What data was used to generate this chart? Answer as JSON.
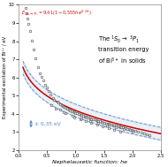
{
  "a": 9.41,
  "b": 0.555,
  "c": 0.24,
  "band": 0.35,
  "xlim": [
    0,
    2.5
  ],
  "ylim": [
    2,
    10
  ],
  "yticks": [
    2,
    3,
    4,
    5,
    6,
    7,
    8,
    9,
    10
  ],
  "xticks": [
    0.0,
    0.5,
    1.0,
    1.5,
    2.0,
    2.5
  ],
  "xlabel": "Nephelauxetic function: he",
  "ylabel": "Experimental excitation of Bi³⁺ / eV",
  "curve_color": "#cc0000",
  "band_color": "#5588cc",
  "dot_facecolor": "white",
  "dot_edgecolor": "#444444",
  "background_color": "#ffffff",
  "data_points": [
    [
      0.12,
      9.85
    ],
    [
      0.14,
      9.55
    ],
    [
      0.16,
      9.25
    ],
    [
      0.18,
      8.95
    ],
    [
      0.2,
      8.55
    ],
    [
      0.23,
      8.05
    ],
    [
      0.26,
      7.55
    ],
    [
      0.3,
      7.05
    ],
    [
      0.35,
      6.55
    ],
    [
      0.38,
      6.25
    ],
    [
      0.4,
      6.05
    ],
    [
      0.43,
      5.85
    ],
    [
      0.46,
      5.62
    ],
    [
      0.5,
      5.45
    ],
    [
      0.53,
      5.28
    ],
    [
      0.56,
      5.08
    ],
    [
      0.6,
      4.88
    ],
    [
      0.63,
      4.78
    ],
    [
      0.68,
      4.68
    ],
    [
      0.7,
      4.62
    ],
    [
      0.73,
      4.55
    ],
    [
      0.76,
      4.48
    ],
    [
      0.78,
      4.42
    ],
    [
      0.8,
      4.38
    ],
    [
      0.83,
      4.32
    ],
    [
      0.86,
      4.28
    ],
    [
      0.88,
      4.22
    ],
    [
      0.9,
      4.2
    ],
    [
      0.93,
      4.16
    ],
    [
      0.96,
      4.12
    ],
    [
      0.98,
      4.08
    ],
    [
      1.0,
      4.05
    ],
    [
      1.03,
      4.02
    ],
    [
      1.06,
      3.98
    ],
    [
      1.08,
      3.95
    ],
    [
      1.1,
      3.92
    ],
    [
      1.13,
      3.88
    ],
    [
      1.16,
      3.86
    ],
    [
      1.18,
      3.83
    ],
    [
      1.2,
      3.8
    ],
    [
      1.23,
      3.78
    ],
    [
      1.26,
      3.75
    ],
    [
      1.28,
      3.72
    ],
    [
      1.3,
      3.7
    ],
    [
      1.33,
      3.68
    ],
    [
      1.36,
      3.65
    ],
    [
      1.38,
      3.62
    ],
    [
      1.4,
      3.6
    ],
    [
      1.43,
      3.58
    ],
    [
      1.46,
      3.55
    ],
    [
      1.48,
      3.53
    ],
    [
      1.5,
      3.5
    ],
    [
      1.53,
      3.48
    ],
    [
      1.56,
      3.46
    ],
    [
      1.58,
      3.44
    ],
    [
      1.6,
      3.42
    ],
    [
      1.63,
      3.4
    ],
    [
      1.66,
      3.38
    ],
    [
      1.68,
      3.36
    ],
    [
      1.7,
      3.34
    ],
    [
      1.73,
      3.32
    ],
    [
      1.76,
      3.3
    ],
    [
      1.78,
      3.28
    ],
    [
      1.8,
      3.26
    ],
    [
      1.83,
      3.24
    ],
    [
      1.86,
      3.22
    ],
    [
      1.88,
      3.2
    ],
    [
      1.9,
      3.18
    ],
    [
      1.93,
      3.16
    ],
    [
      1.96,
      3.13
    ],
    [
      1.98,
      3.1
    ],
    [
      2.0,
      3.08
    ],
    [
      2.05,
      3.05
    ],
    [
      2.1,
      3.0
    ],
    [
      2.15,
      2.96
    ],
    [
      2.2,
      2.92
    ],
    [
      2.25,
      2.88
    ],
    [
      2.3,
      2.84
    ],
    [
      0.58,
      4.48
    ],
    [
      0.73,
      4.22
    ],
    [
      0.83,
      4.02
    ],
    [
      0.98,
      3.82
    ],
    [
      1.08,
      3.72
    ],
    [
      1.18,
      3.62
    ],
    [
      1.28,
      3.52
    ],
    [
      1.38,
      3.42
    ],
    [
      1.48,
      3.32
    ],
    [
      1.58,
      3.22
    ],
    [
      1.68,
      3.12
    ],
    [
      1.78,
      3.02
    ],
    [
      0.65,
      4.3
    ],
    [
      0.8,
      4.1
    ],
    [
      0.95,
      3.9
    ],
    [
      1.1,
      3.75
    ],
    [
      1.25,
      3.62
    ],
    [
      1.4,
      3.5
    ],
    [
      1.55,
      3.38
    ],
    [
      1.7,
      3.25
    ],
    [
      1.85,
      3.15
    ],
    [
      2.0,
      3.0
    ]
  ]
}
